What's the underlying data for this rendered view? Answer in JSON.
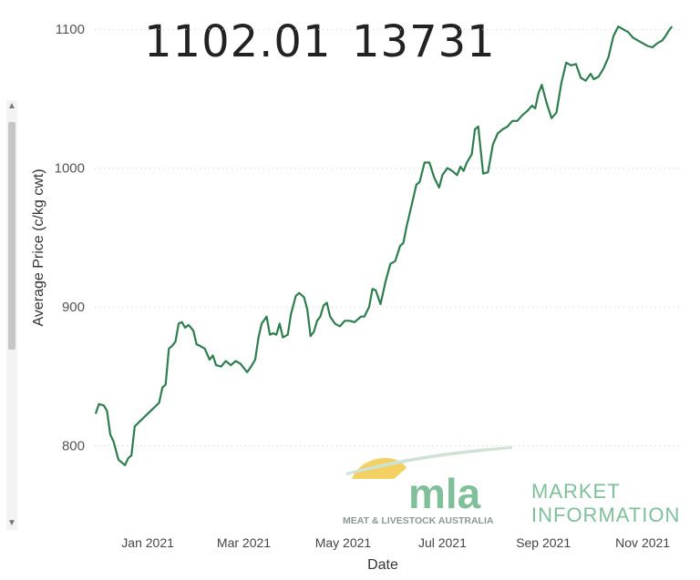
{
  "kpis": {
    "latest_price": "1102.01",
    "volume": "13731"
  },
  "logo": {
    "brand": "mla",
    "tagline": "MEAT & LIVESTOCK AUSTRALIA",
    "line1": "MARKET",
    "line2": "INFORMATION",
    "colors": {
      "sun": "#f2d061",
      "brand": "#7fbf9a",
      "tagline": "#8a9a92"
    }
  },
  "colors": {
    "line": "#2e7d4f",
    "grid": "#cfcfcf",
    "background": "#ffffff"
  },
  "chart_data": {
    "type": "line",
    "xlabel": "Date",
    "ylabel": "Average Price (c/kg cwt)",
    "ylim": [
      780,
      1108
    ],
    "xlim": [
      "2020-11-25",
      "2021-11-25"
    ],
    "y_ticks": [
      800,
      900,
      1000,
      1100
    ],
    "x_ticks": [
      {
        "date": "2021-01-01",
        "label": "Jan 2021"
      },
      {
        "date": "2021-03-01",
        "label": "Mar 2021"
      },
      {
        "date": "2021-05-01",
        "label": "May 2021"
      },
      {
        "date": "2021-07-01",
        "label": "Jul 2021"
      },
      {
        "date": "2021-09-01",
        "label": "Sep 2021"
      },
      {
        "date": "2021-11-01",
        "label": "Nov 2021"
      }
    ],
    "grid": "horizontal dotted",
    "series": [
      {
        "x": [
          "2020-11-30",
          "2020-12-02",
          "2020-12-05",
          "2020-12-07",
          "2020-12-09",
          "2020-12-11",
          "2020-12-14",
          "2020-12-16",
          "2020-12-18",
          "2020-12-20",
          "2020-12-22",
          "2020-12-24",
          "2021-01-08",
          "2021-01-10",
          "2021-01-12",
          "2021-01-14",
          "2021-01-16",
          "2021-01-18",
          "2021-01-20",
          "2021-01-22",
          "2021-01-24",
          "2021-01-26",
          "2021-01-29",
          "2021-01-31",
          "2021-02-02",
          "2021-02-05",
          "2021-02-08",
          "2021-02-10",
          "2021-02-12",
          "2021-02-15",
          "2021-02-18",
          "2021-02-21",
          "2021-02-24",
          "2021-02-27",
          "2021-03-03",
          "2021-03-05",
          "2021-03-08",
          "2021-03-10",
          "2021-03-12",
          "2021-03-15",
          "2021-03-17",
          "2021-03-19",
          "2021-03-21",
          "2021-03-23",
          "2021-03-25",
          "2021-03-28",
          "2021-03-30",
          "2021-04-02",
          "2021-04-04",
          "2021-04-07",
          "2021-04-09",
          "2021-04-11",
          "2021-04-13",
          "2021-04-15",
          "2021-04-17",
          "2021-04-19",
          "2021-04-21",
          "2021-04-23",
          "2021-04-26",
          "2021-04-29",
          "2021-05-02",
          "2021-05-05",
          "2021-05-08",
          "2021-05-10",
          "2021-05-12",
          "2021-05-14",
          "2021-05-17",
          "2021-05-19",
          "2021-05-21",
          "2021-05-24",
          "2021-05-27",
          "2021-05-30",
          "2021-06-02",
          "2021-06-05",
          "2021-06-07",
          "2021-06-09",
          "2021-06-12",
          "2021-06-15",
          "2021-06-17",
          "2021-06-20",
          "2021-06-23",
          "2021-06-26",
          "2021-06-29",
          "2021-07-01",
          "2021-07-04",
          "2021-07-07",
          "2021-07-10",
          "2021-07-12",
          "2021-07-14",
          "2021-07-16",
          "2021-07-19",
          "2021-07-21",
          "2021-07-23",
          "2021-07-26",
          "2021-07-29",
          "2021-08-01",
          "2021-08-04",
          "2021-08-07",
          "2021-08-10",
          "2021-08-13",
          "2021-08-16",
          "2021-08-19",
          "2021-08-22",
          "2021-08-25",
          "2021-08-27",
          "2021-08-29",
          "2021-08-31",
          "2021-09-03",
          "2021-09-06",
          "2021-09-09",
          "2021-09-12",
          "2021-09-15",
          "2021-09-18",
          "2021-09-21",
          "2021-09-24",
          "2021-09-27",
          "2021-09-30",
          "2021-10-02",
          "2021-10-05",
          "2021-10-08",
          "2021-10-11",
          "2021-10-14",
          "2021-10-17",
          "2021-10-20",
          "2021-10-23",
          "2021-10-26",
          "2021-10-29",
          "2021-11-01",
          "2021-11-04",
          "2021-11-07",
          "2021-11-10",
          "2021-11-13",
          "2021-11-15",
          "2021-11-17",
          "2021-11-19"
        ],
        "y": [
          823,
          830,
          829,
          825,
          808,
          803,
          790,
          788,
          786,
          791,
          793,
          814,
          831,
          842,
          844,
          870,
          872,
          875,
          888,
          889,
          885,
          887,
          883,
          873,
          872,
          870,
          862,
          865,
          858,
          857,
          861,
          858,
          861,
          859,
          853,
          856,
          862,
          878,
          888,
          893,
          880,
          881,
          880,
          888,
          878,
          880,
          895,
          908,
          910,
          907,
          898,
          879,
          882,
          890,
          893,
          901,
          903,
          893,
          888,
          886,
          890,
          890,
          889,
          891,
          893,
          893,
          900,
          913,
          912,
          902,
          918,
          931,
          933,
          944,
          946,
          958,
          973,
          988,
          990,
          1004,
          1004,
          993,
          986,
          995,
          1000,
          998,
          995,
          1001,
          998,
          1004,
          1010,
          1028,
          1030,
          996,
          997,
          1017,
          1025,
          1028,
          1030,
          1034,
          1034,
          1038,
          1041,
          1045,
          1043,
          1054,
          1060,
          1047,
          1036,
          1040,
          1061,
          1076,
          1074,
          1075,
          1065,
          1063,
          1068,
          1064,
          1066,
          1072,
          1080,
          1095,
          1102,
          1100,
          1098,
          1094,
          1092,
          1090,
          1088,
          1087,
          1090,
          1092,
          1095,
          1099,
          1102
        ]
      }
    ]
  }
}
